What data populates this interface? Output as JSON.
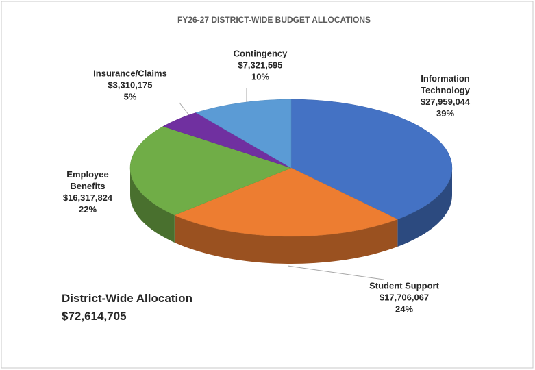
{
  "chart_data": {
    "type": "pie3d",
    "title": "FY26-27 DISTRICT-WIDE BUDGET ALLOCATIONS",
    "categories": [
      "Information Technology",
      "Student Support",
      "Employee Benefits",
      "Insurance/Claims",
      "Contingency"
    ],
    "values": [
      27959044,
      17706067,
      16317824,
      3310175,
      7321595
    ],
    "value_labels": [
      "$27,959,044",
      "$17,706,067",
      "$16,317,824",
      "$3,310,175",
      "$7,321,595"
    ],
    "percent_labels": [
      "39%",
      "24%",
      "22%",
      "5%",
      "10%"
    ],
    "colors": [
      "#4472c4",
      "#ed7d31",
      "#70ad47",
      "#7030a0",
      "#5b9bd5"
    ],
    "annotations": [
      "District-Wide Allocation",
      "$72,614,705"
    ]
  }
}
